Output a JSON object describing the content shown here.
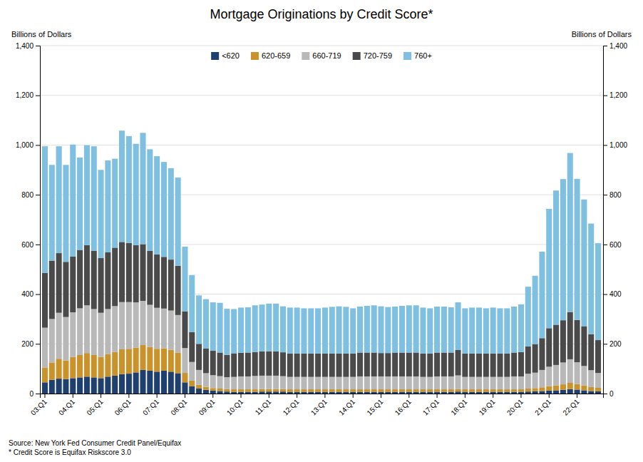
{
  "chart_data": {
    "type": "bar",
    "stacked": true,
    "title": "Mortgage Originations by Credit Score*",
    "ylabel": "Billions of Dollars",
    "y2label": "Billions of Dollars",
    "annotations": [
      "Source: New York Fed Consumer Credit Panel/Equifax",
      "* Credit Score is Equifax Riskscore 3.0"
    ],
    "ylim": [
      0,
      1400
    ],
    "yticks": [
      0,
      200,
      400,
      600,
      800,
      {
        "value": 1000,
        "label": "1,000"
      },
      {
        "value": 1200,
        "label": "1,200"
      },
      {
        "value": 1400,
        "label": "1,400"
      }
    ],
    "y2lim": [
      0,
      1400
    ],
    "y2ticks": [
      0,
      200,
      400,
      600,
      800,
      {
        "value": 1000,
        "label": "1,000"
      },
      {
        "value": 1200,
        "label": "1,200"
      },
      {
        "value": 1400,
        "label": "1,400"
      }
    ],
    "grid": true,
    "legend": "top",
    "categories": [
      "03:Q1",
      null,
      null,
      null,
      "04:Q1",
      null,
      null,
      null,
      "05:Q1",
      null,
      null,
      null,
      "06:Q1",
      null,
      null,
      null,
      "07:Q1",
      null,
      null,
      null,
      "08:Q1",
      null,
      null,
      null,
      "09:Q1",
      null,
      null,
      null,
      "10:Q1",
      null,
      null,
      null,
      "11:Q1",
      null,
      null,
      null,
      "12:Q1",
      null,
      null,
      null,
      "13:Q1",
      null,
      null,
      null,
      "14:Q1",
      null,
      null,
      null,
      "15:Q1",
      null,
      null,
      null,
      "16:Q1",
      null,
      null,
      null,
      "17:Q1",
      null,
      null,
      null,
      "18:Q1",
      null,
      null,
      null,
      "19:Q1",
      null,
      null,
      null,
      "20:Q1",
      null,
      null,
      null,
      "21:Q1",
      null,
      null,
      null,
      "22:Q1",
      null,
      null,
      null
    ],
    "series": [
      {
        "name": "<620",
        "color": "#1f3f6e",
        "values": [
          45,
          55,
          60,
          58,
          62,
          65,
          68,
          65,
          62,
          68,
          72,
          78,
          80,
          85,
          95,
          92,
          88,
          92,
          88,
          82,
          45,
          30,
          20,
          15,
          12,
          10,
          8,
          7,
          7,
          7,
          7,
          8,
          8,
          8,
          8,
          7,
          7,
          7,
          7,
          7,
          7,
          7,
          7,
          7,
          7,
          7,
          7,
          7,
          7,
          7,
          7,
          7,
          7,
          7,
          7,
          7,
          7,
          7,
          7,
          8,
          7,
          7,
          7,
          7,
          7,
          7,
          7,
          7,
          7,
          8,
          9,
          10,
          12,
          13,
          15,
          18,
          16,
          13,
          10,
          9
        ]
      },
      {
        "name": "620-659",
        "color": "#c9922a",
        "values": [
          60,
          70,
          80,
          75,
          85,
          90,
          95,
          90,
          85,
          90,
          95,
          100,
          100,
          100,
          100,
          95,
          92,
          90,
          88,
          82,
          38,
          22,
          15,
          12,
          10,
          10,
          10,
          10,
          10,
          10,
          10,
          10,
          10,
          10,
          10,
          10,
          10,
          10,
          10,
          10,
          10,
          10,
          10,
          10,
          10,
          10,
          10,
          10,
          10,
          10,
          10,
          10,
          10,
          10,
          10,
          10,
          10,
          10,
          10,
          10,
          10,
          10,
          10,
          10,
          10,
          10,
          10,
          10,
          10,
          12,
          13,
          15,
          18,
          20,
          22,
          25,
          22,
          20,
          16,
          14
        ]
      },
      {
        "name": "660-719",
        "color": "#b8b8b8",
        "values": [
          160,
          175,
          185,
          175,
          180,
          188,
          192,
          185,
          178,
          182,
          185,
          190,
          188,
          182,
          178,
          170,
          165,
          160,
          158,
          152,
          100,
          75,
          60,
          55,
          52,
          50,
          48,
          50,
          52,
          52,
          54,
          54,
          54,
          54,
          52,
          50,
          50,
          50,
          50,
          50,
          50,
          50,
          50,
          50,
          50,
          52,
          52,
          52,
          52,
          52,
          52,
          52,
          52,
          52,
          50,
          50,
          52,
          52,
          52,
          55,
          50,
          50,
          50,
          50,
          50,
          50,
          50,
          52,
          52,
          60,
          62,
          70,
          78,
          82,
          88,
          95,
          88,
          78,
          68,
          60
        ]
      },
      {
        "name": "720-759",
        "color": "#4a4a4a",
        "values": [
          220,
          235,
          240,
          222,
          225,
          235,
          242,
          235,
          220,
          228,
          235,
          242,
          238,
          230,
          228,
          218,
          215,
          208,
          205,
          198,
          148,
          120,
          105,
          100,
          98,
          95,
          90,
          95,
          95,
          96,
          96,
          98,
          98,
          98,
          96,
          94,
          94,
          94,
          94,
          94,
          94,
          94,
          94,
          94,
          94,
          96,
          96,
          96,
          94,
          94,
          96,
          96,
          96,
          96,
          94,
          94,
          96,
          96,
          96,
          102,
          94,
          94,
          94,
          94,
          94,
          94,
          94,
          96,
          98,
          110,
          115,
          128,
          155,
          162,
          170,
          190,
          170,
          160,
          145,
          132
        ]
      },
      {
        "name": "760+",
        "color": "#7fbfdf",
        "values": [
          510,
          385,
          430,
          390,
          450,
          372,
          402,
          420,
          355,
          370,
          358,
          448,
          430,
          408,
          448,
          408,
          395,
          382,
          368,
          355,
          260,
          230,
          195,
          198,
          195,
          200,
          185,
          178,
          182,
          182,
          188,
          188,
          192,
          192,
          185,
          185,
          185,
          182,
          182,
          182,
          185,
          188,
          190,
          188,
          182,
          185,
          188,
          190,
          188,
          185,
          185,
          188,
          190,
          190,
          185,
          182,
          185,
          185,
          182,
          192,
          182,
          185,
          185,
          182,
          185,
          182,
          182,
          185,
          192,
          240,
          275,
          348,
          480,
          540,
          568,
          640,
          568,
          510,
          445,
          390
        ]
      }
    ]
  }
}
